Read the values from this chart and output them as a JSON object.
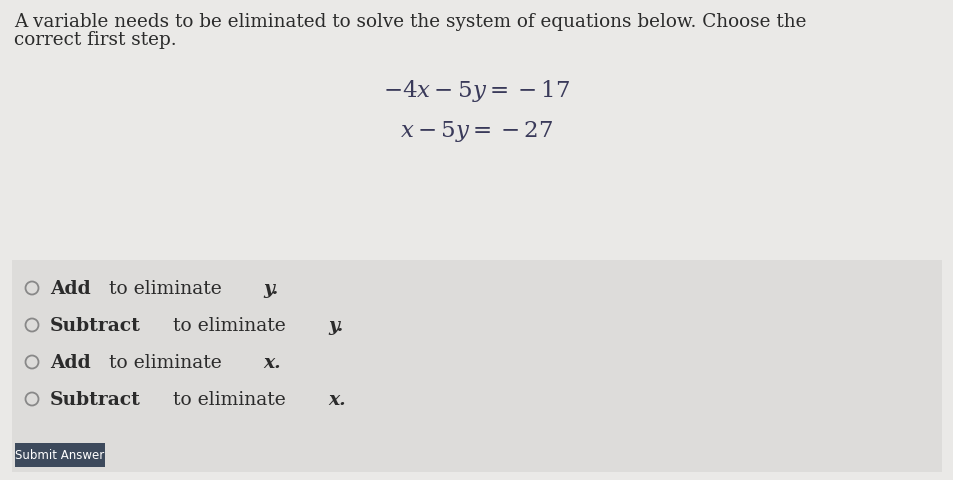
{
  "bg_top_color": "#eae9e7",
  "bg_bottom_color": "#dddcda",
  "question_line1": "A variable needs to be eliminated to solve the system of equations below. Choose the",
  "question_line2": "correct first step.",
  "text_color": "#2b2b2b",
  "eq_color": "#3a3a5a",
  "option_color": "#2b2b2b",
  "circle_color": "#888888",
  "submit_bg": "#3d4a5c",
  "submit_text_color": "#ffffff",
  "submit_label": "Submit Answer",
  "font_size_q": 13.2,
  "font_size_eq": 16.5,
  "font_size_opt": 13.5,
  "font_size_submit": 8.5,
  "options": [
    [
      "Add",
      " to eliminate ",
      "y",
      "."
    ],
    [
      "Subtract",
      " to eliminate ",
      "y",
      "."
    ],
    [
      "Add",
      " to eliminate ",
      "x",
      "."
    ],
    [
      "Subtract",
      " to eliminate ",
      "x",
      "."
    ]
  ]
}
